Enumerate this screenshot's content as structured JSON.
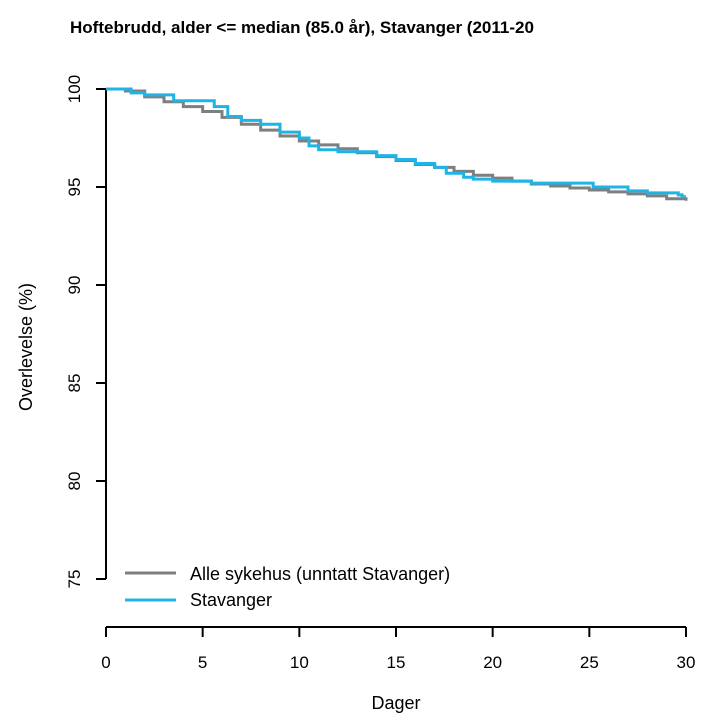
{
  "chart_data": {
    "type": "line",
    "step": true,
    "title": "Hoftebrudd, alder <= median (85.0 år), Stavanger (2011-20",
    "xlabel": "Dager",
    "ylabel": "Overlevelse (%)",
    "xlim": [
      0,
      30
    ],
    "ylim": [
      75,
      100
    ],
    "x_ticks": [
      "0",
      "5",
      "10",
      "15",
      "20",
      "25",
      "30"
    ],
    "y_ticks": [
      "75",
      "80",
      "85",
      "90",
      "95",
      "100"
    ],
    "grid": false,
    "legend_position": "bottom-left",
    "series": [
      {
        "name": "Alle sykehus (unntatt Stavanger)",
        "color": "#7f7f7f",
        "x": [
          0,
          1,
          2,
          3,
          4,
          5,
          6,
          7,
          8,
          9,
          10,
          11,
          12,
          13,
          14,
          15,
          16,
          17,
          18,
          19,
          20,
          21,
          22,
          23,
          24,
          25,
          26,
          27,
          28,
          29,
          30
        ],
        "y": [
          100,
          99.9,
          99.6,
          99.35,
          99.1,
          98.85,
          98.55,
          98.2,
          97.9,
          97.6,
          97.35,
          97.15,
          96.95,
          96.75,
          96.55,
          96.35,
          96.15,
          96.0,
          95.8,
          95.6,
          95.45,
          95.3,
          95.15,
          95.05,
          94.95,
          94.85,
          94.75,
          94.65,
          94.55,
          94.4,
          94.3
        ]
      },
      {
        "name": "Stavanger",
        "color": "#1eb4e6",
        "x": [
          0,
          1,
          1.3,
          2,
          3.5,
          5,
          5.6,
          6.3,
          7,
          8,
          9,
          10,
          10.5,
          11,
          12,
          14,
          15,
          16,
          17,
          17.6,
          18.5,
          19,
          20,
          22,
          23,
          25,
          25.2,
          27,
          28,
          29.6,
          29.8,
          30
        ],
        "y": [
          100,
          100,
          99.8,
          99.7,
          99.4,
          99.4,
          99.1,
          98.6,
          98.4,
          98.2,
          97.8,
          97.5,
          97.1,
          96.9,
          96.8,
          96.6,
          96.4,
          96.2,
          96.0,
          95.7,
          95.5,
          95.4,
          95.3,
          95.2,
          95.2,
          95.2,
          95.0,
          94.8,
          94.7,
          94.6,
          94.5,
          94.5
        ]
      }
    ]
  }
}
